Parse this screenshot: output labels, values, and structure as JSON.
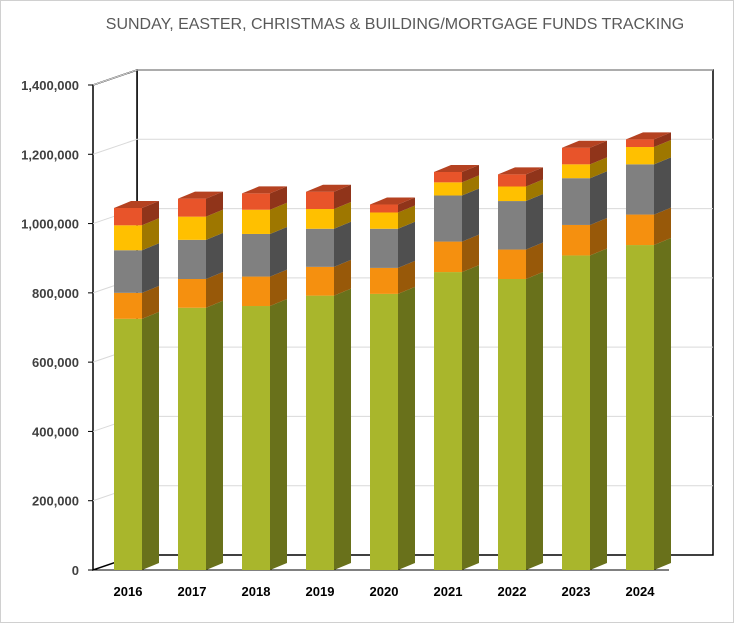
{
  "chart_data": {
    "type": "bar",
    "stacked": true,
    "three_d": true,
    "title": "SUNDAY, EASTER, CHRISTMAS & BUILDING/MORTGAGE FUNDS TRACKING",
    "xlabel": "",
    "ylabel": "",
    "ylim": [
      0,
      1400000
    ],
    "ytick_labels": [
      "0",
      "200,000",
      "400,000",
      "600,000",
      "800,000",
      "1,000,000",
      "1,200,000",
      "1,400,000"
    ],
    "ytick_values": [
      0,
      200000,
      400000,
      600000,
      800000,
      1000000,
      1200000,
      1400000
    ],
    "grid": true,
    "legend": "none",
    "categories": [
      "2016",
      "2017",
      "2018",
      "2019",
      "2020",
      "2021",
      "2022",
      "2023",
      "2024"
    ],
    "series": [
      {
        "color": "#a9b62c",
        "values": [
          725000,
          757000,
          762000,
          792000,
          797000,
          860000,
          840000,
          908000,
          938000
        ]
      },
      {
        "color": "#f5900f",
        "values": [
          75000,
          83000,
          85000,
          83000,
          75000,
          88000,
          85000,
          88000,
          88000
        ]
      },
      {
        "color": "#808080",
        "values": [
          123000,
          113000,
          123000,
          110000,
          113000,
          133000,
          140000,
          135000,
          145000
        ]
      },
      {
        "color": "#ffc000",
        "values": [
          72000,
          67000,
          70000,
          57000,
          47000,
          38000,
          42000,
          40000,
          50000
        ]
      },
      {
        "color": "#e8542a",
        "values": [
          50000,
          52000,
          47000,
          50000,
          23000,
          30000,
          35000,
          48000,
          22000
        ]
      }
    ]
  }
}
